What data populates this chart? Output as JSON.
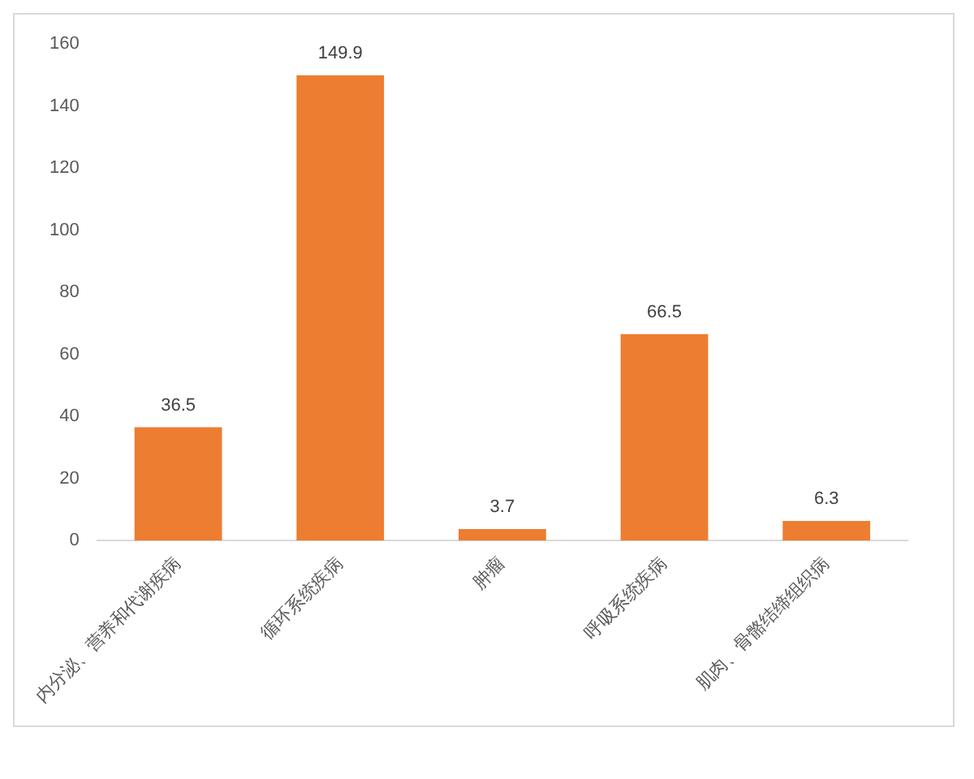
{
  "chart_data": {
    "type": "bar",
    "categories": [
      "内分泌、营养和代谢疾病",
      "循环系统疾病",
      "肿瘤",
      "呼吸系统疾病",
      "肌肉、骨骼结缔组织病"
    ],
    "values": [
      36.5,
      149.9,
      3.7,
      66.5,
      6.3
    ],
    "color": "#ed7d31",
    "ylim": [
      0,
      160
    ],
    "yticks": [
      0,
      20,
      40,
      60,
      80,
      100,
      120,
      140,
      160
    ],
    "grid": false,
    "legend": false,
    "data_labels": true
  }
}
